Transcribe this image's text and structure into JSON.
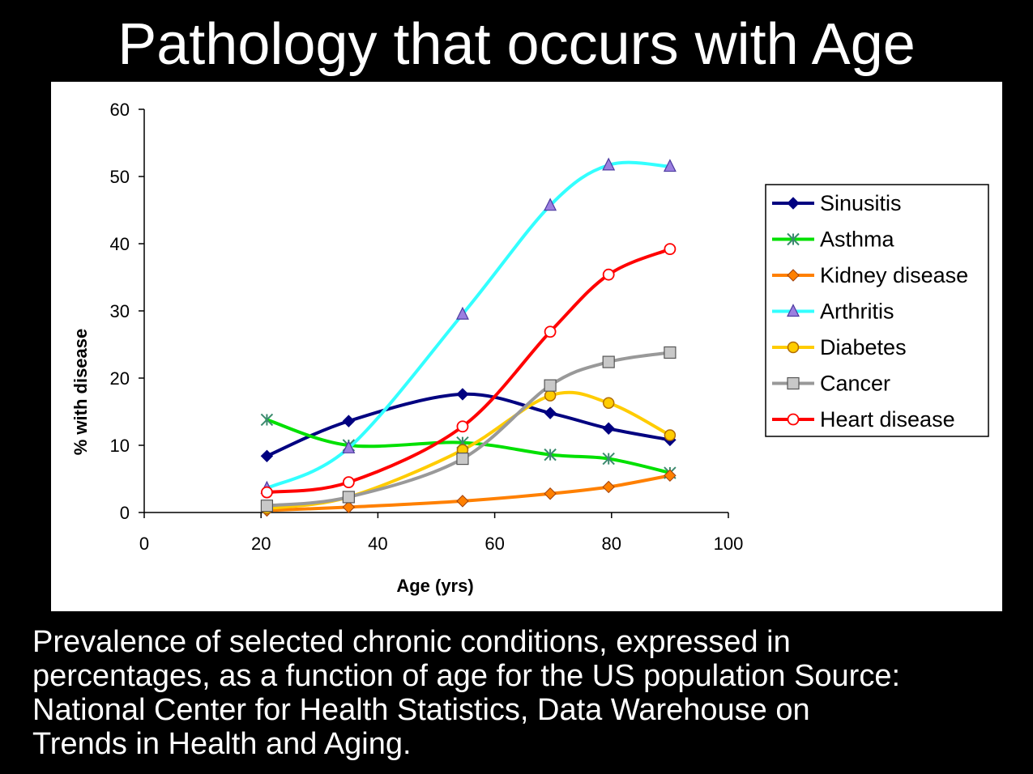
{
  "slide": {
    "title": "Pathology that occurs with Age",
    "caption_lines": [
      "Prevalence of selected chronic conditions, expressed in",
      "percentages, as a function of age for the US population Source:",
      "National Center for Health Statistics, Data Warehouse on",
      "Trends in Health and Aging."
    ]
  },
  "chart_data": {
    "type": "line",
    "title": "",
    "xlabel": "Age (yrs)",
    "ylabel": "% with disease",
    "xlim": [
      0,
      100
    ],
    "ylim": [
      0,
      60
    ],
    "xticks": [
      0,
      20,
      40,
      60,
      80,
      100
    ],
    "yticks": [
      0,
      10,
      20,
      30,
      40,
      50,
      60
    ],
    "grid": false,
    "legend_position": "right",
    "smooth": true,
    "x": [
      21,
      35,
      54.5,
      69.5,
      79.5,
      90
    ],
    "series": [
      {
        "name": "Sinusitis",
        "color": "#000080",
        "marker": "diamond",
        "values": [
          8.4,
          13.6,
          17.6,
          14.8,
          12.5,
          10.8
        ]
      },
      {
        "name": "Asthma",
        "color": "#00e000",
        "marker": "asterisk",
        "values": [
          13.8,
          10.0,
          10.4,
          8.6,
          8.0,
          5.9
        ]
      },
      {
        "name": "Kidney disease",
        "color": "#ff8000",
        "marker": "diamond",
        "values": [
          0.3,
          0.8,
          1.7,
          2.8,
          3.8,
          5.5
        ]
      },
      {
        "name": "Arthritis",
        "color": "#33ffff",
        "marker": "triangle",
        "values": [
          3.6,
          9.6,
          29.5,
          45.7,
          51.7,
          51.5
        ]
      },
      {
        "name": "Diabetes",
        "color": "#ffcc00",
        "marker": "circle",
        "values": [
          0.6,
          2.3,
          9.3,
          17.4,
          16.3,
          11.5
        ]
      },
      {
        "name": "Cancer",
        "color": "#999999",
        "marker": "square",
        "values": [
          1.0,
          2.3,
          8.0,
          18.9,
          22.4,
          23.8
        ]
      },
      {
        "name": "Heart disease",
        "color": "#ff0000",
        "marker": "circle-open",
        "values": [
          3.0,
          4.5,
          12.8,
          26.9,
          35.4,
          39.2
        ]
      }
    ]
  }
}
